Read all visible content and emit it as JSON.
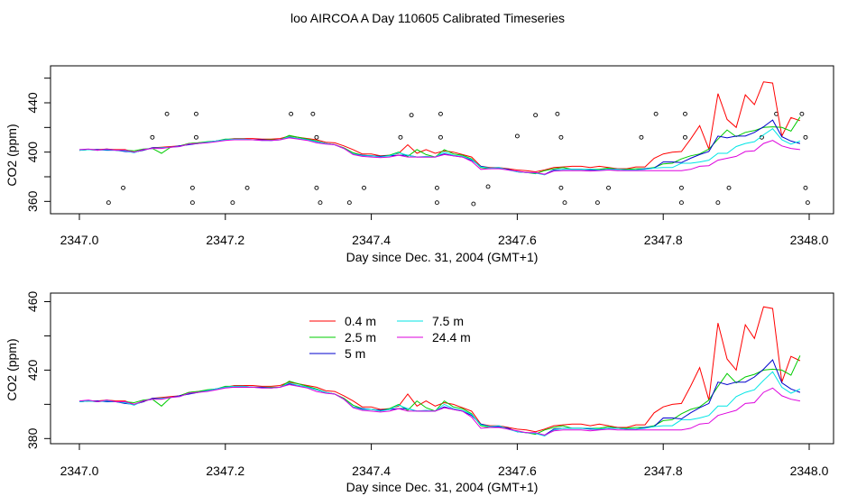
{
  "title": "loo AIRCOA A  Day 110605  Calibrated Timeseries",
  "chart_data": [
    {
      "type": "line",
      "xlabel": "Day since Dec. 31, 2004 (GMT+1)",
      "ylabel": "CO2 (ppm)",
      "xlim": [
        2347.0,
        2348.0
      ],
      "ylim": [
        350,
        470
      ],
      "xticks": [
        "2347.0",
        "2347.2",
        "2347.4",
        "2347.6",
        "2347.8",
        "2348.0"
      ],
      "yticks": [
        "360",
        "400",
        "440"
      ],
      "legend": false,
      "scatter_points": [
        {
          "x": 2347.04,
          "y": 359
        },
        {
          "x": 2347.06,
          "y": 371
        },
        {
          "x": 2347.1,
          "y": 412
        },
        {
          "x": 2347.12,
          "y": 431
        },
        {
          "x": 2347.155,
          "y": 359
        },
        {
          "x": 2347.155,
          "y": 371
        },
        {
          "x": 2347.16,
          "y": 412
        },
        {
          "x": 2347.16,
          "y": 431
        },
        {
          "x": 2347.21,
          "y": 359
        },
        {
          "x": 2347.23,
          "y": 371
        },
        {
          "x": 2347.29,
          "y": 431
        },
        {
          "x": 2347.32,
          "y": 431
        },
        {
          "x": 2347.325,
          "y": 412
        },
        {
          "x": 2347.325,
          "y": 371
        },
        {
          "x": 2347.33,
          "y": 359
        },
        {
          "x": 2347.37,
          "y": 359
        },
        {
          "x": 2347.39,
          "y": 371
        },
        {
          "x": 2347.44,
          "y": 412
        },
        {
          "x": 2347.455,
          "y": 430
        },
        {
          "x": 2347.49,
          "y": 371
        },
        {
          "x": 2347.49,
          "y": 359
        },
        {
          "x": 2347.495,
          "y": 412
        },
        {
          "x": 2347.495,
          "y": 431
        },
        {
          "x": 2347.54,
          "y": 358
        },
        {
          "x": 2347.56,
          "y": 372
        },
        {
          "x": 2347.6,
          "y": 413
        },
        {
          "x": 2347.625,
          "y": 430
        },
        {
          "x": 2347.655,
          "y": 431
        },
        {
          "x": 2347.66,
          "y": 412
        },
        {
          "x": 2347.66,
          "y": 371
        },
        {
          "x": 2347.665,
          "y": 359
        },
        {
          "x": 2347.71,
          "y": 359
        },
        {
          "x": 2347.725,
          "y": 371
        },
        {
          "x": 2347.77,
          "y": 412
        },
        {
          "x": 2347.79,
          "y": 431
        },
        {
          "x": 2347.825,
          "y": 359
        },
        {
          "x": 2347.825,
          "y": 371
        },
        {
          "x": 2347.83,
          "y": 412
        },
        {
          "x": 2347.83,
          "y": 431
        },
        {
          "x": 2347.875,
          "y": 359
        },
        {
          "x": 2347.89,
          "y": 371
        },
        {
          "x": 2347.935,
          "y": 412
        },
        {
          "x": 2347.955,
          "y": 431
        },
        {
          "x": 2347.99,
          "y": 431
        },
        {
          "x": 2347.995,
          "y": 412
        },
        {
          "x": 2347.995,
          "y": 371
        },
        {
          "x": 2347.998,
          "y": 359
        }
      ]
    },
    {
      "type": "line",
      "xlabel": "Day since Dec. 31, 2004 (GMT+1)",
      "ylabel": "CO2 (ppm)",
      "xlim": [
        2347.0,
        2348.0
      ],
      "ylim": [
        377,
        465
      ],
      "xticks": [
        "2347.0",
        "2347.2",
        "2347.4",
        "2347.6",
        "2347.8",
        "2348.0"
      ],
      "yticks": [
        "380",
        "420",
        "460"
      ],
      "legend": "top-center",
      "x": [
        2347.0,
        2347.0125,
        2347.025,
        2347.0375,
        2347.05,
        2347.0625,
        2347.075,
        2347.0875,
        2347.1,
        2347.1125,
        2347.125,
        2347.1375,
        2347.15,
        2347.1625,
        2347.175,
        2347.1875,
        2347.2,
        2347.2125,
        2347.225,
        2347.2375,
        2347.25,
        2347.2625,
        2347.275,
        2347.2875,
        2347.3,
        2347.3125,
        2347.325,
        2347.3375,
        2347.35,
        2347.3625,
        2347.375,
        2347.3875,
        2347.4,
        2347.4125,
        2347.425,
        2347.4375,
        2347.45,
        2347.4625,
        2347.475,
        2347.4875,
        2347.5,
        2347.5125,
        2347.525,
        2347.5375,
        2347.55,
        2347.5625,
        2347.575,
        2347.5875,
        2347.6,
        2347.6125,
        2347.625,
        2347.6375,
        2347.65,
        2347.6625,
        2347.675,
        2347.6875,
        2347.7,
        2347.7125,
        2347.725,
        2347.7375,
        2347.75,
        2347.7625,
        2347.775,
        2347.7875,
        2347.8,
        2347.8125,
        2347.825,
        2347.8375,
        2347.85,
        2347.8625,
        2347.875,
        2347.8875,
        2347.9,
        2347.9125,
        2347.925,
        2347.9375,
        2347.95,
        2347.9625,
        2347.975,
        2347.9875
      ],
      "series": [
        {
          "name": "0.4 m",
          "color": "#ff0000",
          "values": [
            401.5,
            402,
            402,
            402.5,
            402,
            402,
            400,
            401.5,
            403.5,
            404,
            404.5,
            405,
            407,
            407.5,
            408,
            409,
            410,
            411,
            411,
            411,
            410.5,
            410.5,
            411,
            413,
            412,
            411,
            410,
            408,
            407.5,
            405,
            402,
            398.5,
            398.5,
            397,
            397.5,
            399,
            406,
            399,
            402,
            399,
            401,
            400,
            398,
            396,
            388.5,
            387.5,
            387.5,
            386.5,
            385.5,
            385,
            384,
            385.5,
            387.5,
            388,
            388.5,
            388.5,
            387.5,
            388.5,
            387.5,
            386.5,
            386.5,
            388,
            388,
            395,
            398.5,
            400,
            400.5,
            410.5,
            421.5,
            402.5,
            447.5,
            426.5,
            420,
            446.5,
            438.5,
            457,
            456,
            413,
            428,
            425.5
          ]
        },
        {
          "name": "2.5 m",
          "color": "#00cc00",
          "values": [
            401.5,
            402,
            401.5,
            402.5,
            401.5,
            401.5,
            401,
            402.5,
            403,
            399,
            404,
            405,
            407,
            407.5,
            408.5,
            409,
            410.5,
            410.5,
            410.5,
            410,
            410,
            410,
            410,
            413.5,
            412,
            410.5,
            409,
            407,
            406,
            403.5,
            399.5,
            397.5,
            397,
            396.5,
            397.5,
            400,
            396.5,
            402,
            398,
            396,
            402,
            398.5,
            397.5,
            394.5,
            387.5,
            386.5,
            387,
            386,
            384,
            383.5,
            382.5,
            385,
            386.5,
            387.5,
            386,
            386,
            386,
            386,
            387,
            386,
            386,
            386.5,
            386.5,
            387.5,
            390.5,
            391,
            394.5,
            397,
            398.5,
            402.5,
            410.5,
            418,
            412.5,
            416,
            417.5,
            420,
            420.5,
            420,
            417,
            428.5
          ]
        },
        {
          "name": "5 m",
          "color": "#0000cc",
          "values": [
            401.5,
            402,
            402,
            401.5,
            401.5,
            400.5,
            400,
            401.5,
            403.5,
            403.5,
            404,
            405,
            406,
            407,
            408,
            409,
            410,
            410,
            410,
            410,
            410,
            409.5,
            410,
            412,
            411,
            410,
            408.5,
            407,
            406,
            403,
            398.5,
            397.5,
            397,
            396.5,
            397,
            397.5,
            397.5,
            396,
            396,
            396,
            398.5,
            397,
            396,
            393.5,
            388.5,
            387,
            387,
            386,
            384,
            383.5,
            383,
            382,
            385.5,
            386,
            386,
            386,
            385.5,
            385.5,
            386,
            386,
            385.5,
            385.5,
            386.5,
            387,
            392,
            392,
            391.5,
            395,
            398,
            400.5,
            413,
            411.5,
            413,
            413,
            416,
            420.5,
            426,
            412.5,
            409,
            407
          ]
        },
        {
          "name": "7.5 m",
          "color": "#00e5e5",
          "values": [
            401.5,
            402,
            401.5,
            402,
            401.5,
            401,
            399.5,
            402,
            403,
            403.5,
            404,
            404.5,
            406.5,
            407,
            408,
            409,
            410,
            410.5,
            410.5,
            410,
            409.5,
            409.5,
            410,
            412.5,
            411,
            410,
            408.5,
            407,
            406,
            403,
            398.5,
            397,
            397,
            396,
            397,
            399.5,
            397.5,
            396,
            396.5,
            396,
            400,
            397.5,
            396.5,
            394,
            388,
            387,
            387.5,
            385.5,
            384,
            383.5,
            383,
            381.5,
            385,
            386,
            386,
            386,
            386,
            385.5,
            386,
            386,
            385.5,
            385.5,
            386,
            387,
            387.5,
            387.5,
            391,
            391,
            392,
            393.5,
            399,
            399,
            404.5,
            407,
            408.5,
            414,
            419,
            410,
            406.5,
            409
          ]
        },
        {
          "name": "24.4 m",
          "color": "#dd00dd",
          "values": [
            402,
            402.5,
            401.5,
            402.5,
            401.5,
            401.5,
            400,
            402,
            403,
            403,
            404,
            404.5,
            406.5,
            407,
            407.5,
            408.5,
            409.5,
            410,
            410,
            410,
            409.5,
            409.5,
            410,
            411.5,
            410.5,
            409.5,
            407.5,
            406.5,
            406,
            403,
            398,
            396.5,
            396,
            395.5,
            396,
            397.5,
            396,
            396,
            396,
            396,
            398,
            397,
            396,
            392.5,
            386,
            386.5,
            386.5,
            385.5,
            384.5,
            383.5,
            383.5,
            382,
            384.5,
            385,
            385,
            385,
            384.5,
            385,
            385.5,
            385,
            385,
            385,
            385,
            385,
            385,
            385,
            385,
            386,
            388.5,
            389,
            393.5,
            395,
            396.5,
            400.5,
            401,
            407,
            409.5,
            405,
            403,
            402
          ]
        }
      ]
    }
  ]
}
